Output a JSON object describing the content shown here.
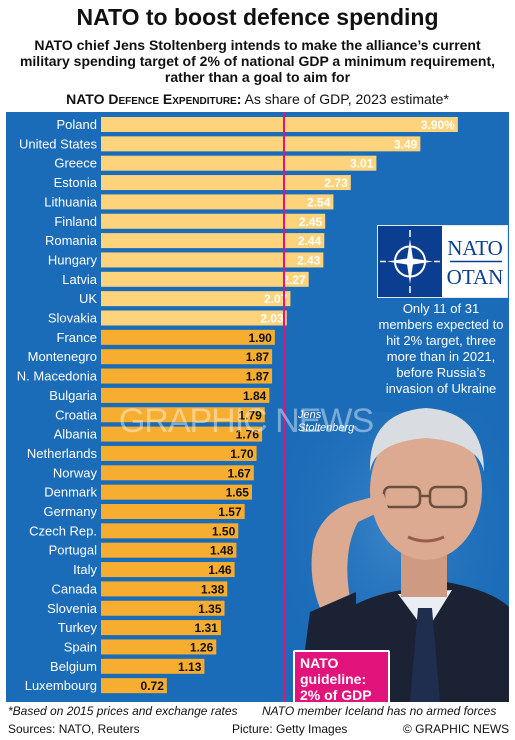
{
  "header": {
    "title": "NATO to boost defence spending",
    "subtitle": "NATO chief Jens Stoltenberg intends to make the alliance’s current military spending target of 2% of national GDP a minimum requirement, rather than a goal to aim for",
    "chart_label_bold": "NATO Defence Expenditure:",
    "chart_label_rest": " As share of GDP, 2023 estimate*"
  },
  "logo": {
    "line1": "NATO",
    "line2": "OTAN"
  },
  "note": "Only 11 of 31 members expected to hit 2% target, three more than in 2021, before Russia’s invasion of Ukraine",
  "photo_caption": {
    "line1": "Jens",
    "line2": "Stoltenberg"
  },
  "guideline": {
    "line1": "NATO guideline:",
    "line2": "2% of GDP"
  },
  "watermark": "GRAPHIC NEWS",
  "footer": {
    "footnote": "*Based on 2015 prices and exchange rates",
    "iceland": "NATO member Iceland has no armed forces",
    "sources": "Sources: NATO, Reuters",
    "picture": "Picture: Getty Images",
    "credit": "© GRAPHIC NEWS"
  },
  "colors": {
    "panel": "#1b6cb8",
    "bar_above_target": "#fdd37c",
    "bar_below_target": "#f7ad2f",
    "guideline": "#e3137c"
  },
  "chart_data": {
    "type": "bar",
    "orientation": "horizontal",
    "categories": [
      "Poland",
      "United States",
      "Greece",
      "Estonia",
      "Lithuania",
      "Finland",
      "Romania",
      "Hungary",
      "Latvia",
      "UK",
      "Slovakia",
      "France",
      "Montenegro",
      "N. Macedonia",
      "Bulgaria",
      "Croatia",
      "Albania",
      "Netherlands",
      "Norway",
      "Denmark",
      "Germany",
      "Czech Rep.",
      "Portugal",
      "Italy",
      "Canada",
      "Slovenia",
      "Turkey",
      "Spain",
      "Belgium",
      "Luxembourg"
    ],
    "values": [
      3.9,
      3.49,
      3.01,
      2.73,
      2.54,
      2.45,
      2.44,
      2.43,
      2.27,
      2.07,
      2.03,
      1.9,
      1.87,
      1.87,
      1.84,
      1.79,
      1.76,
      1.7,
      1.67,
      1.65,
      1.57,
      1.5,
      1.48,
      1.46,
      1.38,
      1.35,
      1.31,
      1.26,
      1.13,
      0.72
    ],
    "value_labels": [
      "3.90%",
      "3.49",
      "3.01",
      "2.73",
      "2.54",
      "2.45",
      "2.44",
      "2.43",
      "2.27",
      "2.07",
      "2.03",
      "1.90",
      "1.87",
      "1.87",
      "1.84",
      "1.79",
      "1.76",
      "1.70",
      "1.67",
      "1.65",
      "1.57",
      "1.50",
      "1.48",
      "1.46",
      "1.38",
      "1.35",
      "1.31",
      "1.26",
      "1.13",
      "0.72"
    ],
    "reference_line": 2.0,
    "xlim": [
      0,
      4.0
    ]
  }
}
